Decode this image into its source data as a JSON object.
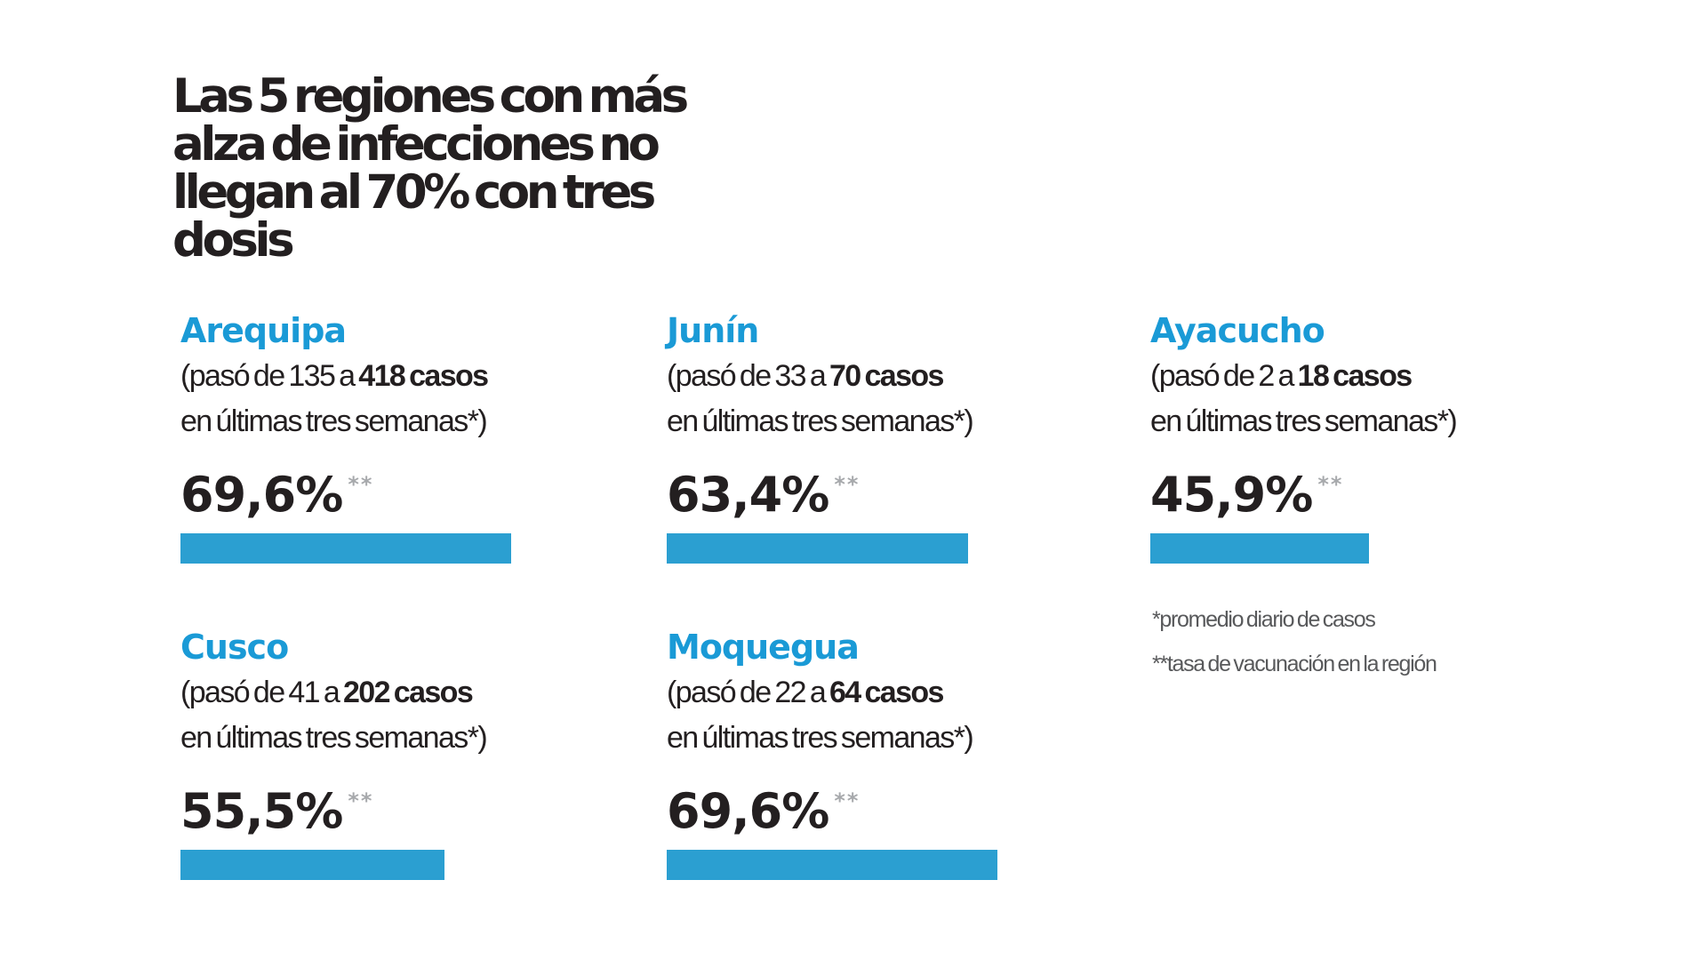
{
  "title": "Las 5 regiones con más alza de infecciones no llegan al 70% con tres dosis",
  "colors": {
    "accent": "#1a9ad6",
    "bar": "#2b9fd1",
    "text": "#231f20",
    "note": "#58595b"
  },
  "regions": [
    {
      "name": "Arequipa",
      "desc_prefix": "(pasó de 135 a ",
      "desc_bold": "418 casos",
      "desc_line2": "en últimas tres semanas*)",
      "value_label": "69,6%",
      "stars": "**"
    },
    {
      "name": "Junín",
      "desc_prefix": "(pasó de 33 a ",
      "desc_bold": "70 casos",
      "desc_line2": "en últimas tres semanas*)",
      "value_label": "63,4%",
      "stars": "**"
    },
    {
      "name": "Ayacucho",
      "desc_prefix": "(pasó de 2 a ",
      "desc_bold": "18 casos",
      "desc_line2": "en últimas tres semanas*)",
      "value_label": "45,9%",
      "stars": "**"
    },
    {
      "name": "Cusco",
      "desc_prefix": "(pasó de 41 a ",
      "desc_bold": "202 casos",
      "desc_line2": "en últimas tres semanas*)",
      "value_label": "55,5%",
      "stars": "**"
    },
    {
      "name": "Moquegua",
      "desc_prefix": "(pasó de 22 a ",
      "desc_bold": "64 casos",
      "desc_line2": "en últimas tres semanas*)",
      "value_label": "69,6%",
      "stars": "**"
    }
  ],
  "notes": [
    "*promedio diario de casos",
    "**tasa de vacunación en la región"
  ],
  "chart_data": {
    "type": "bar",
    "title": "Las 5 regiones con más alza de infecciones no llegan al 70% con tres dosis",
    "categories": [
      "Arequipa",
      "Junín",
      "Ayacucho",
      "Cusco",
      "Moquegua"
    ],
    "values": [
      69.6,
      63.4,
      45.9,
      55.5,
      69.6
    ],
    "unit": "%",
    "ylim": [
      0,
      100
    ],
    "cases": [
      {
        "region": "Arequipa",
        "from": 135,
        "to": 418
      },
      {
        "region": "Junín",
        "from": 33,
        "to": 70
      },
      {
        "region": "Ayacucho",
        "from": 2,
        "to": 18
      },
      {
        "region": "Cusco",
        "from": 41,
        "to": 202
      },
      {
        "region": "Moquegua",
        "from": 22,
        "to": 64
      }
    ]
  }
}
